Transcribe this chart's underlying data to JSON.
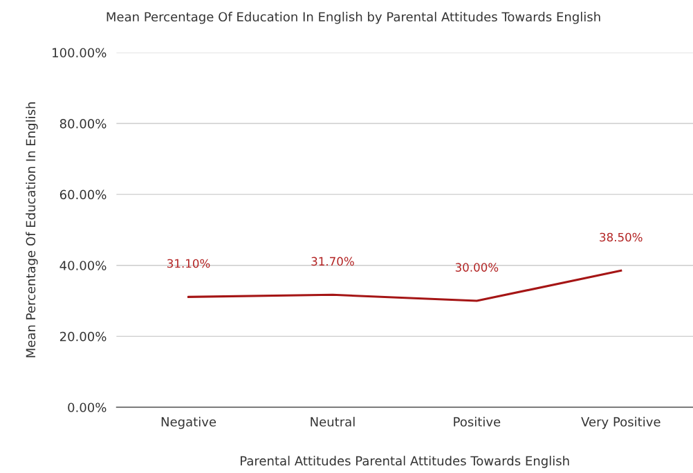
{
  "chart_data": {
    "type": "line",
    "title": "Mean Percentage Of Education In English by Parental Attitudes Towards English",
    "xlabel": "Parental Attitudes Parental Attitudes Towards English",
    "ylabel": "Mean Percentage Of Education In English",
    "categories": [
      "Negative",
      "Neutral",
      "Positive",
      "Very Positive"
    ],
    "series": [
      {
        "color": "#a51515",
        "values": [
          31.1,
          31.7,
          30.0,
          38.5
        ],
        "value_labels": [
          "31.10%",
          "31.70%",
          "30.00%",
          "38.50%"
        ]
      }
    ],
    "ylim": [
      0,
      100
    ],
    "yticks": [
      {
        "value": 0,
        "label": "0.00%"
      },
      {
        "value": 20,
        "label": "20.00%"
      },
      {
        "value": 40,
        "label": "40.00%"
      },
      {
        "value": 60,
        "label": "60.00%"
      },
      {
        "value": 80,
        "label": "80.00%"
      },
      {
        "value": 100,
        "label": "100.00%"
      }
    ],
    "grid": "y",
    "marker": "none",
    "line_style": "solid"
  }
}
